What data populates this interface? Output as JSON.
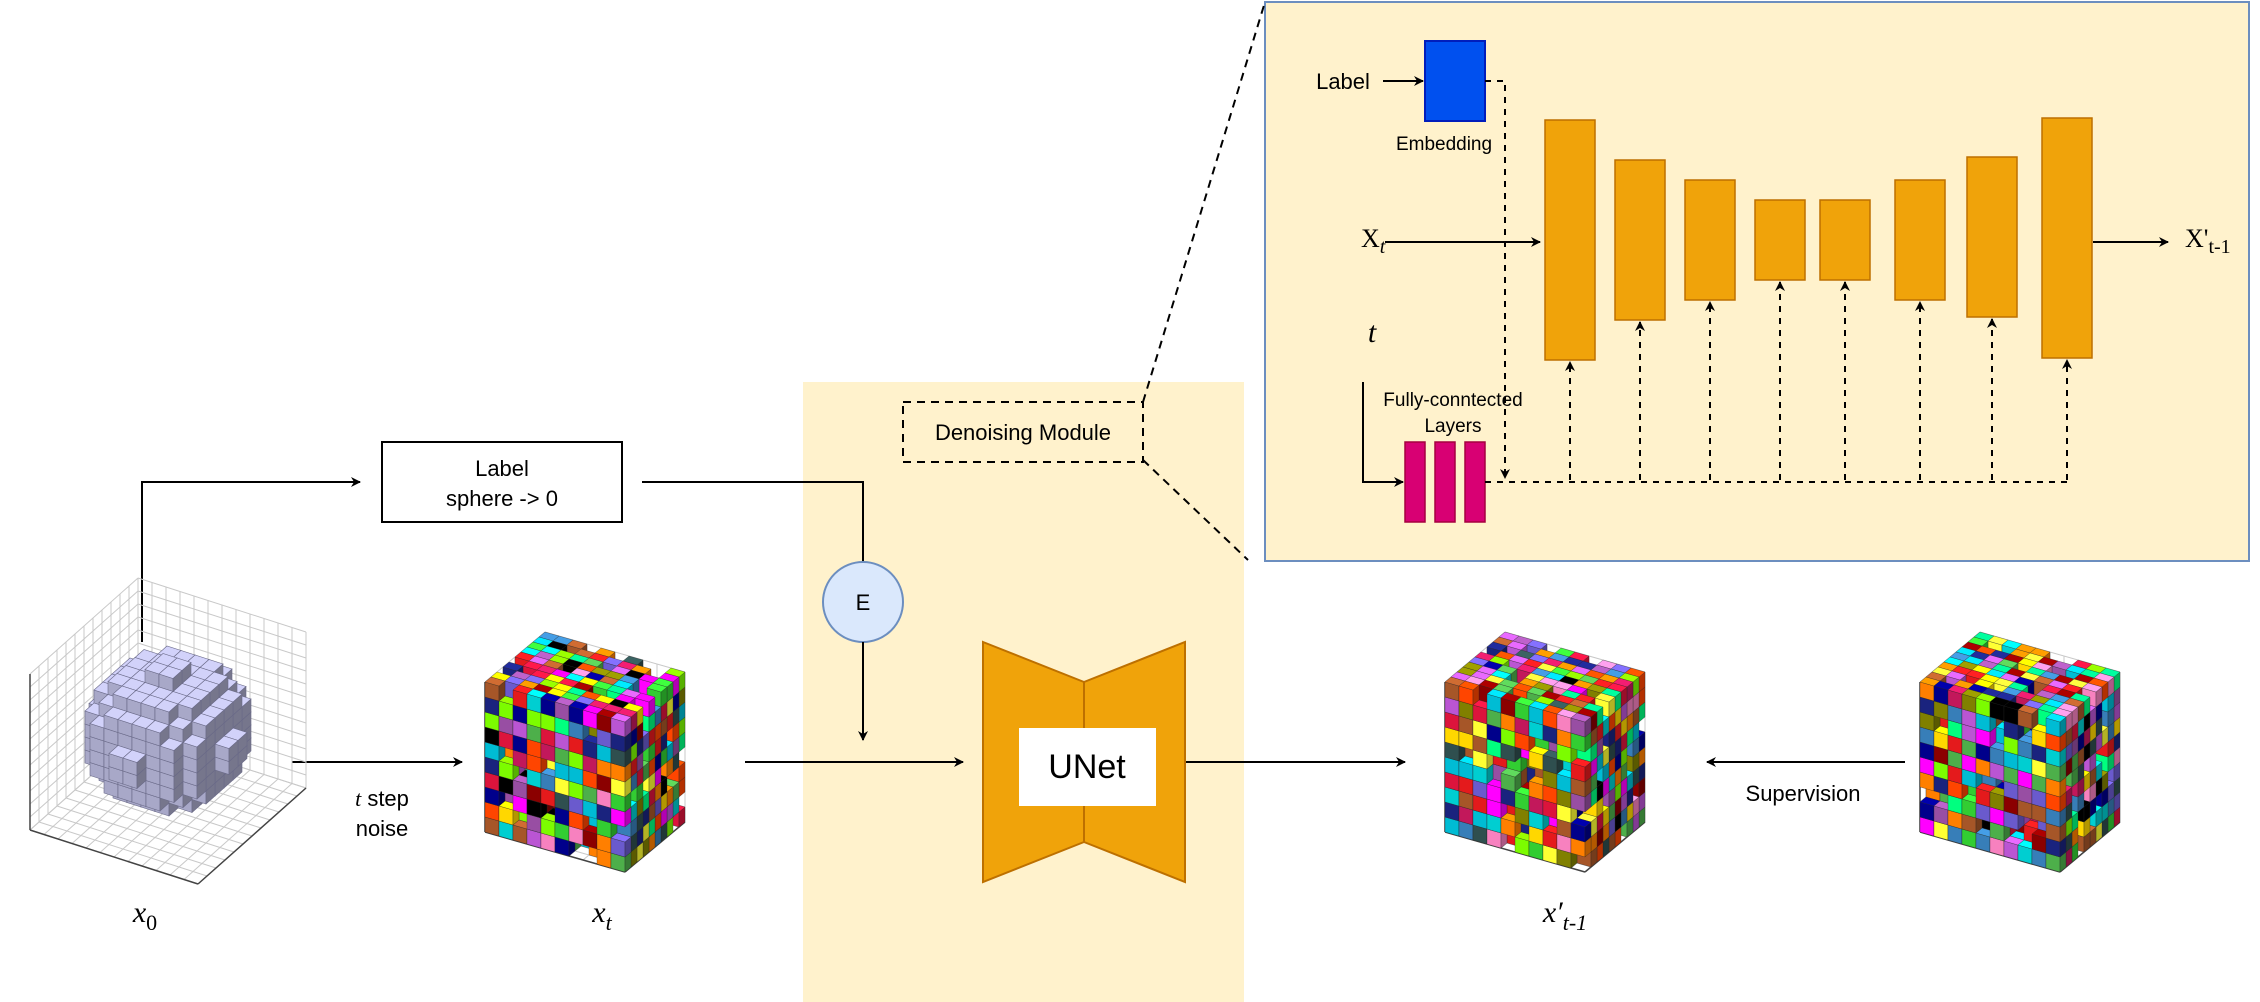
{
  "labels": {
    "label_box_line1": "Label",
    "label_box_line2": "sphere -> 0",
    "encoder": "E",
    "denoising_module": "Denoising Module",
    "unet": "UNet",
    "noise_t": "t",
    "noise_rest": " step",
    "noise_line2": "noise",
    "supervision": "Supervision",
    "x0_base": "x",
    "x0_sub": "0",
    "xt_base": "x",
    "xt_sub": "t",
    "xprev_base": "x′",
    "xprev_sub": "t-1"
  },
  "inset": {
    "label": "Label",
    "embedding": "Embedding",
    "input_base": "X",
    "input_sub": "t",
    "output_base": "X'",
    "output_sub": "t-1",
    "timestep": "t",
    "fc_line1": "Fully-conntected",
    "fc_line2": "Layers"
  },
  "colors": {
    "module_bg": "#fff2cc",
    "unet": "#f0a30a",
    "unet_stroke": "#bd7000",
    "encoder_fill": "#dae8fc",
    "encoder_stroke": "#6c8ebf",
    "embedding": "#0050ef",
    "fc_layer": "#d80073",
    "inset_border": "#6c8ebf",
    "sphere_voxel": "#a8a8c8"
  }
}
